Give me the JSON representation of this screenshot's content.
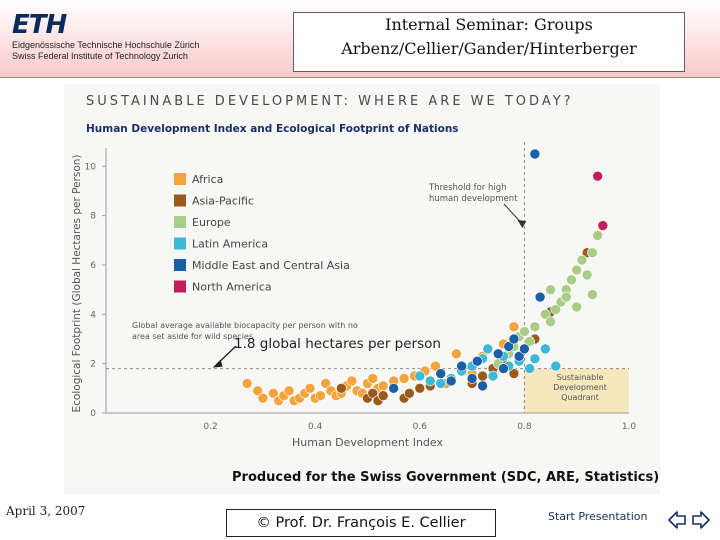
{
  "header": {
    "logo_text": "ETH",
    "logo_line1": "Eidgenössische Technische Hochschule Zürich",
    "logo_line2": "Swiss Federal Institute of Technology Zurich",
    "title_line1": "Internal Seminar: Groups",
    "title_line2": "Arbenz/Cellier/Gander/Hinterberger"
  },
  "figure": {
    "banner": "SUSTAINABLE DEVELOPMENT: WHERE ARE WE TODAY?",
    "credit": "Produced for the Swiss Government (SDC, ARE, Statistics)"
  },
  "footer": {
    "date": "April 3, 2007",
    "copyright": "© Prof. Dr. François E. Cellier",
    "start_label": "Start Presentation"
  },
  "colors": {
    "Africa": "#f5a33c",
    "Asia-Pacific": "#9a5a1c",
    "Europe": "#a9cc86",
    "Latin America": "#3fb8d8",
    "Middle East and Central Asia": "#1b5fa6",
    "North America": "#c41e5a",
    "threshold": "#8a8a8a",
    "quadrant": "#f7e7bd",
    "nav_arrows": "#1a2f6a"
  },
  "chart_data": {
    "type": "scatter",
    "title": "Human Development Index and Ecological Footprint of Nations",
    "xlabel": "Human Development Index",
    "ylabel": "Ecological Footprint (Global Hectares per Person)",
    "xlim": [
      0,
      1.0
    ],
    "ylim": [
      0,
      10.5
    ],
    "xticks": [
      "0.2",
      "0.4",
      "0.6",
      "0.8",
      "1.0"
    ],
    "yticks": [
      "0",
      "2",
      "4",
      "6",
      "8",
      "10"
    ],
    "legend": [
      "Africa",
      "Asia-Pacific",
      "Europe",
      "Latin America",
      "Middle East and Central Asia",
      "North America"
    ],
    "annotations": {
      "threshold": "Threshold for high human development",
      "biocapacity": "Global average available biocapacity per person with no area set aside for wild species",
      "biocapacity_value": "1.8 global hectares per person",
      "quadrant": "Sustainable Development Quadrant"
    },
    "threshold_hdi": 0.8,
    "biocapacity_line": 1.8,
    "series": [
      {
        "name": "Africa",
        "points": [
          [
            0.27,
            1.2
          ],
          [
            0.29,
            0.9
          ],
          [
            0.3,
            0.6
          ],
          [
            0.32,
            0.8
          ],
          [
            0.33,
            0.5
          ],
          [
            0.34,
            0.7
          ],
          [
            0.35,
            0.9
          ],
          [
            0.36,
            0.5
          ],
          [
            0.37,
            0.6
          ],
          [
            0.38,
            0.8
          ],
          [
            0.39,
            1.0
          ],
          [
            0.4,
            0.6
          ],
          [
            0.41,
            0.7
          ],
          [
            0.42,
            1.2
          ],
          [
            0.43,
            0.9
          ],
          [
            0.44,
            0.7
          ],
          [
            0.45,
            0.8
          ],
          [
            0.46,
            1.1
          ],
          [
            0.47,
            1.3
          ],
          [
            0.48,
            0.9
          ],
          [
            0.49,
            0.8
          ],
          [
            0.5,
            1.2
          ],
          [
            0.51,
            1.4
          ],
          [
            0.52,
            1.0
          ],
          [
            0.53,
            1.1
          ],
          [
            0.55,
            1.3
          ],
          [
            0.57,
            1.4
          ],
          [
            0.59,
            1.5
          ],
          [
            0.61,
            1.7
          ],
          [
            0.63,
            1.9
          ],
          [
            0.65,
            1.2
          ],
          [
            0.67,
            2.4
          ],
          [
            0.7,
            1.6
          ],
          [
            0.72,
            2.3
          ],
          [
            0.76,
            2.8
          ],
          [
            0.78,
            3.5
          ],
          [
            0.8,
            3.3
          ]
        ]
      },
      {
        "name": "Asia-Pacific",
        "points": [
          [
            0.45,
            1.0
          ],
          [
            0.5,
            0.6
          ],
          [
            0.51,
            0.8
          ],
          [
            0.52,
            0.5
          ],
          [
            0.53,
            0.7
          ],
          [
            0.57,
            0.6
          ],
          [
            0.58,
            0.8
          ],
          [
            0.6,
            1.0
          ],
          [
            0.62,
            1.1
          ],
          [
            0.7,
            1.2
          ],
          [
            0.72,
            1.5
          ],
          [
            0.74,
            1.8
          ],
          [
            0.76,
            2.0
          ],
          [
            0.78,
            1.6
          ],
          [
            0.82,
            3.0
          ],
          [
            0.85,
            4.1
          ],
          [
            0.92,
            6.5
          ]
        ]
      },
      {
        "name": "Europe",
        "points": [
          [
            0.75,
            2.0
          ],
          [
            0.77,
            2.4
          ],
          [
            0.78,
            2.7
          ],
          [
            0.79,
            3.1
          ],
          [
            0.8,
            3.3
          ],
          [
            0.81,
            2.9
          ],
          [
            0.82,
            3.5
          ],
          [
            0.84,
            4.0
          ],
          [
            0.85,
            3.7
          ],
          [
            0.86,
            4.2
          ],
          [
            0.87,
            4.5
          ],
          [
            0.88,
            5.0
          ],
          [
            0.89,
            5.4
          ],
          [
            0.9,
            5.8
          ],
          [
            0.91,
            6.2
          ],
          [
            0.92,
            5.6
          ],
          [
            0.93,
            6.5
          ],
          [
            0.94,
            7.2
          ],
          [
            0.85,
            5.0
          ],
          [
            0.88,
            4.7
          ],
          [
            0.9,
            4.3
          ],
          [
            0.93,
            4.8
          ]
        ]
      },
      {
        "name": "Latin America",
        "points": [
          [
            0.6,
            1.5
          ],
          [
            0.62,
            1.3
          ],
          [
            0.64,
            1.2
          ],
          [
            0.66,
            1.4
          ],
          [
            0.68,
            1.7
          ],
          [
            0.7,
            1.9
          ],
          [
            0.72,
            2.2
          ],
          [
            0.73,
            2.6
          ],
          [
            0.74,
            1.5
          ],
          [
            0.76,
            2.3
          ],
          [
            0.77,
            1.9
          ],
          [
            0.79,
            2.1
          ],
          [
            0.81,
            1.8
          ],
          [
            0.82,
            2.2
          ],
          [
            0.84,
            2.6
          ],
          [
            0.86,
            1.9
          ]
        ]
      },
      {
        "name": "Middle East and Central Asia",
        "points": [
          [
            0.55,
            1.0
          ],
          [
            0.64,
            1.6
          ],
          [
            0.66,
            1.3
          ],
          [
            0.68,
            1.9
          ],
          [
            0.7,
            1.4
          ],
          [
            0.71,
            2.1
          ],
          [
            0.72,
            1.1
          ],
          [
            0.75,
            2.4
          ],
          [
            0.76,
            1.8
          ],
          [
            0.77,
            2.7
          ],
          [
            0.78,
            3.0
          ],
          [
            0.79,
            2.3
          ],
          [
            0.8,
            2.6
          ],
          [
            0.82,
            10.5
          ],
          [
            0.83,
            4.7
          ]
        ]
      },
      {
        "name": "North America",
        "points": [
          [
            0.94,
            9.6
          ],
          [
            0.95,
            7.6
          ]
        ]
      }
    ]
  }
}
